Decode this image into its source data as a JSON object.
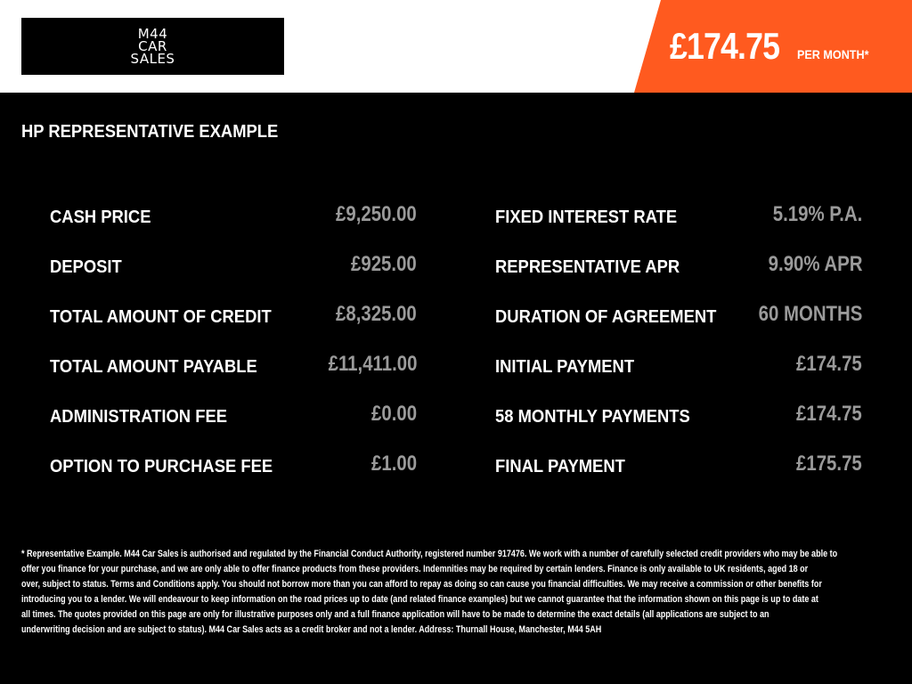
{
  "header": {
    "logo_text": "M44 CAR SALES",
    "monthly_price": "£174.75",
    "per_month_label": "PER MONTH*",
    "accent_color": "#ff5a1f"
  },
  "section_title": "HP REPRESENTATIVE EXAMPLE",
  "left_rows": [
    {
      "label": "CASH PRICE",
      "value": "£9,250.00"
    },
    {
      "label": "DEPOSIT",
      "value": "£925.00"
    },
    {
      "label": "TOTAL AMOUNT OF CREDIT",
      "value": "£8,325.00"
    },
    {
      "label": "TOTAL AMOUNT PAYABLE",
      "value": "£11,411.00"
    },
    {
      "label": "ADMINISTRATION FEE",
      "value": "£0.00"
    },
    {
      "label": "OPTION TO PURCHASE FEE",
      "value": "£1.00"
    }
  ],
  "right_rows": [
    {
      "label": "FIXED INTEREST RATE",
      "value": "5.19% P.A."
    },
    {
      "label": "REPRESENTATIVE APR",
      "value": "9.90% APR"
    },
    {
      "label": "DURATION OF AGREEMENT",
      "value": "60 MONTHS"
    },
    {
      "label": "INITIAL PAYMENT",
      "value": "£174.75"
    },
    {
      "label": "58 MONTHLY PAYMENTS",
      "value": "£174.75"
    },
    {
      "label": "FINAL PAYMENT",
      "value": "£175.75"
    }
  ],
  "disclaimer_lines": [
    "* Representative Example. M44 Car Sales is authorised and regulated by the Financial Conduct Authority, registered number 917476. We work with a number of carefully selected credit providers who may be able to",
    "offer you finance for your purchase, and we are only able to offer finance products from these providers. Indemnities may be required by certain lenders. Finance is only available to UK residents, aged 18 or",
    "over, subject to status. Terms and Conditions apply. You should not borrow more than you can afford to repay as doing so can cause you financial difficulties. We may receive a commission or other benefits for",
    "introducing you to a lender. We will endeavour to keep information on the road prices up to date (and related finance examples) but we cannot guarantee that the information shown on this page is up to date at",
    "all times. The quotes provided on this page are only for illustrative purposes only and a full finance application will have to be made to determine the exact details (all applications are subject to an",
    "underwriting decision and are subject to status). M44 Car Sales acts as a credit broker and not a lender. Address: Thurnall House, Manchester, M44 5AH"
  ]
}
